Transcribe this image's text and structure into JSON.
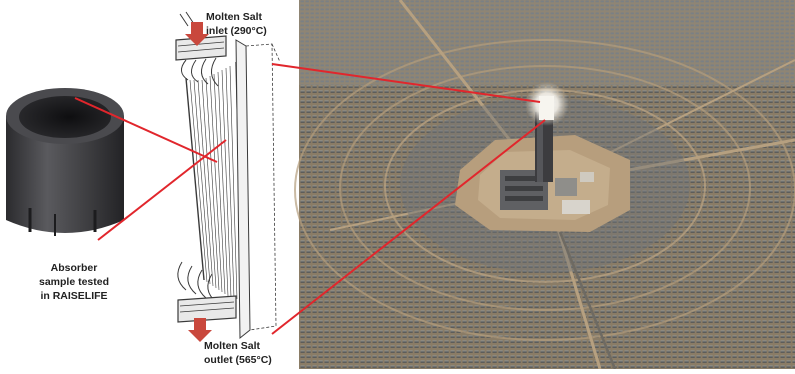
{
  "labels": {
    "sample_line1": "Absorber",
    "sample_line2": "sample tested",
    "sample_line3": "in RAISELIFE",
    "inlet_line1": "Molten Salt",
    "inlet_line2": "inlet (290°C)",
    "outlet_line1": "Molten Salt",
    "outlet_line2": "outlet (565°C)"
  },
  "colors": {
    "connector_lines": "#e1262c",
    "flow_arrows": "#c9483d",
    "tube_sample": "#3a3a3d",
    "mirror_field": "#7b7161",
    "desert": "#a98b6a"
  },
  "icons": {
    "flow_arrow_in": "down-arrow-icon",
    "flow_arrow_out": "down-arrow-icon"
  }
}
